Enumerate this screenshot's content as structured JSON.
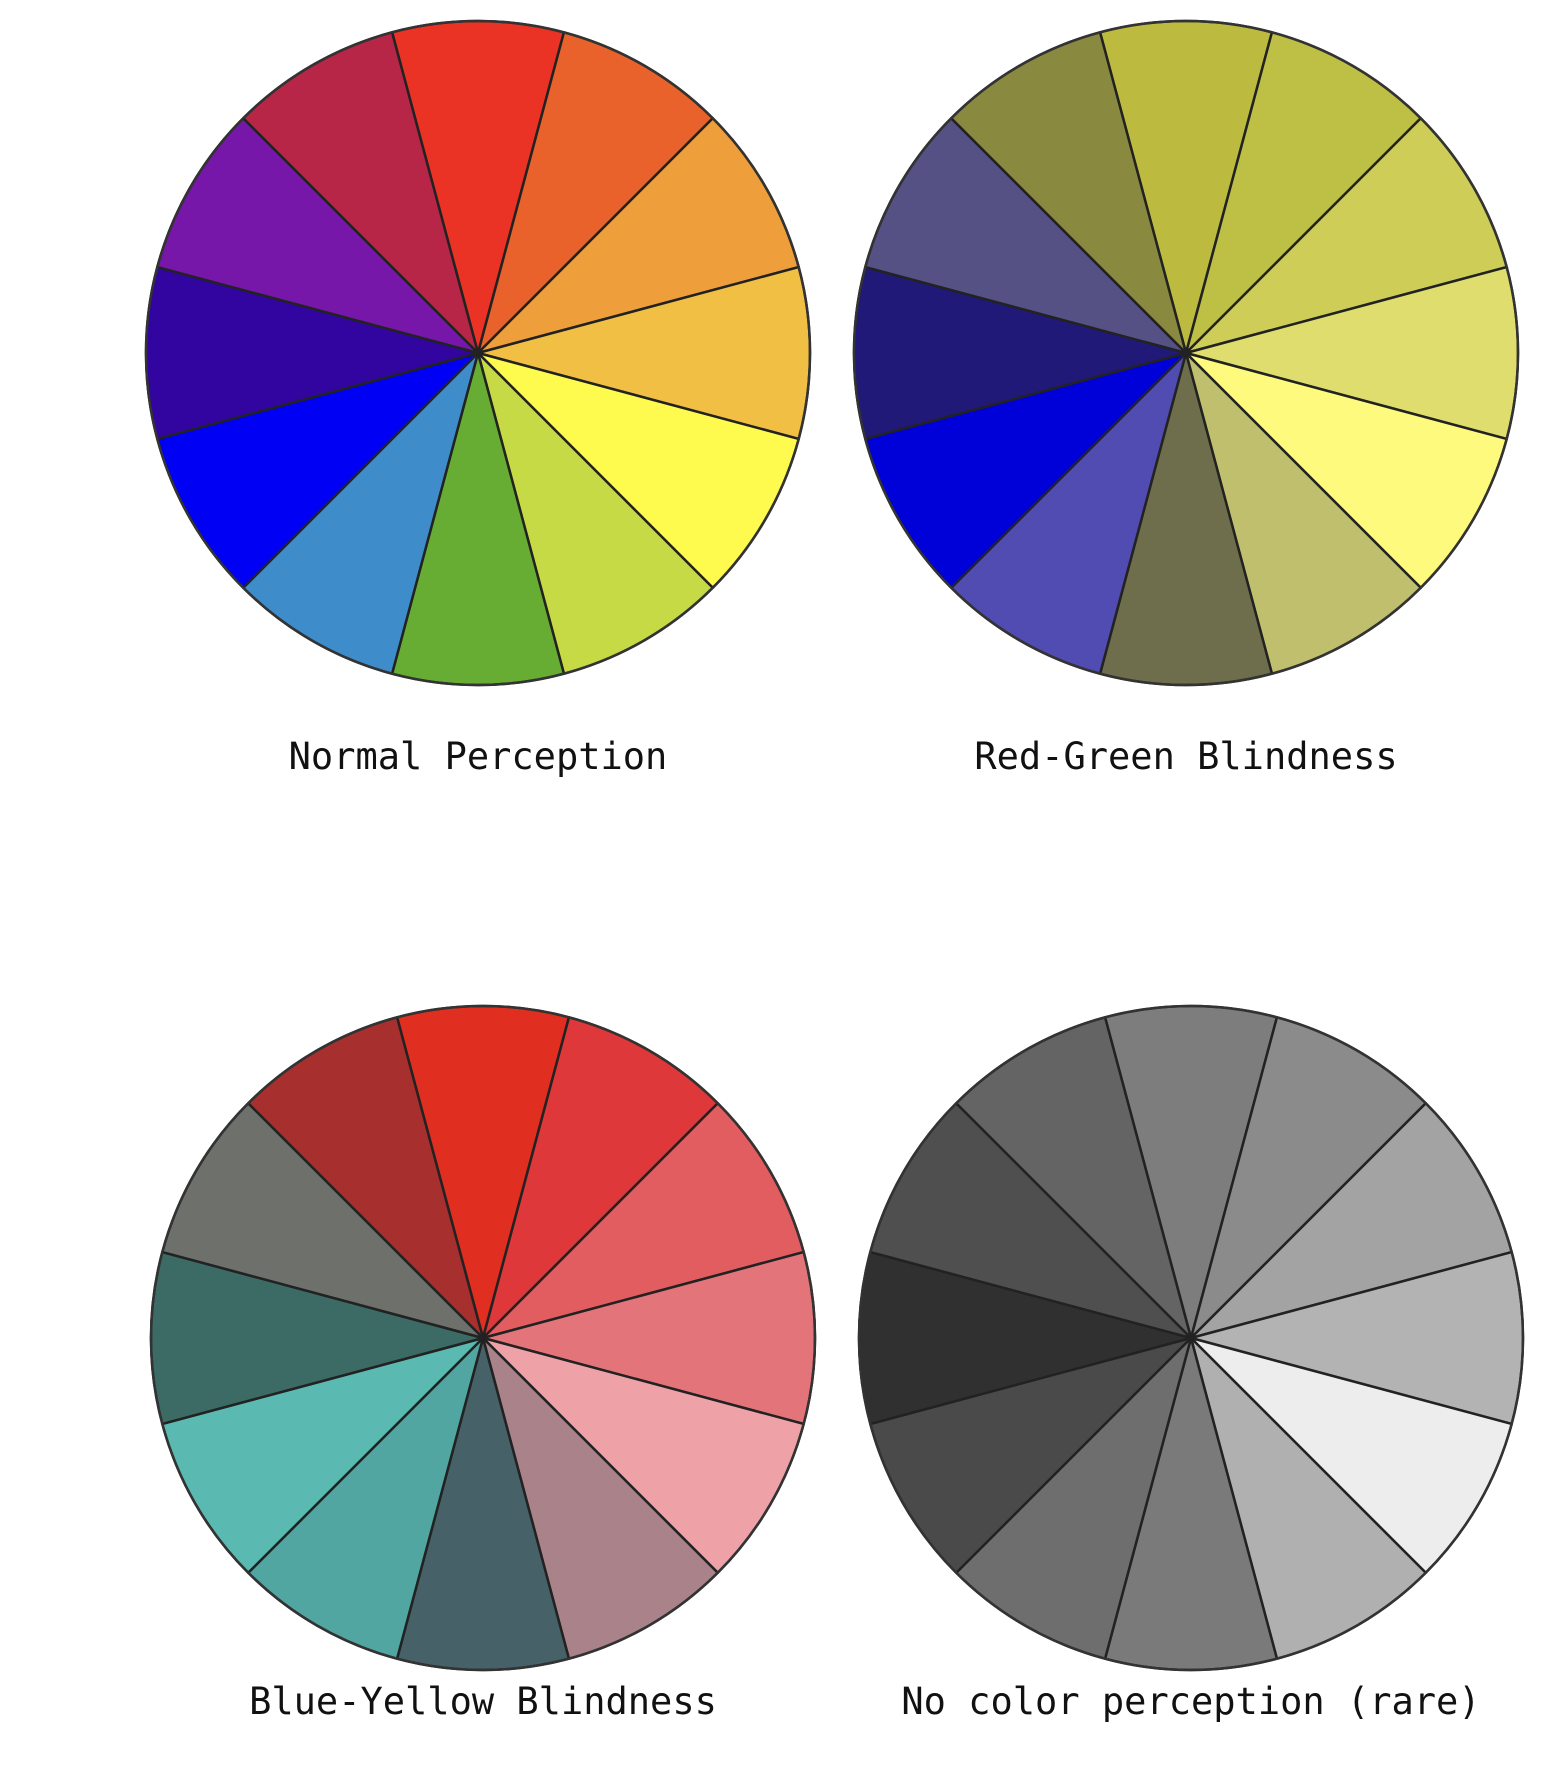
{
  "wheels": [
    {
      "caption": "Normal Perception",
      "segments": [
        "#EA3324",
        "#E9622B",
        "#EE9E3A",
        "#F1BF44",
        "#FFFA4E",
        "#C5DA45",
        "#67AD33",
        "#3E8DCA",
        "#0000F5",
        "#3305A0",
        "#7617AA",
        "#B72647"
      ]
    },
    {
      "caption": "Red-Green Blindness",
      "segments": [
        "#BCBA3F",
        "#BEBF45",
        "#CDCD57",
        "#DEDD6D",
        "#FDFA7D",
        "#C0BF6E",
        "#6E6E4C",
        "#514CB1",
        "#0000D8",
        "#211978",
        "#555185",
        "#8A8940"
      ]
    },
    {
      "caption": "Blue-Yellow Blindness",
      "segments": [
        "#E02F21",
        "#DE383B",
        "#E15D5F",
        "#E3747A",
        "#EFA1A8",
        "#A98389",
        "#466167",
        "#52A6A1",
        "#5AB9B1",
        "#3C6B66",
        "#6E706C",
        "#A72F2E"
      ]
    },
    {
      "caption": "No color perception (rare)",
      "segments": [
        "#7D7D7D",
        "#8B8B8B",
        "#A3A3A3",
        "#B3B3B3",
        "#EDEDED",
        "#B0B0B0",
        "#7A7A7A",
        "#6E6E6E",
        "#4A4A4A",
        "#303030",
        "#4F4F4F",
        "#646464"
      ]
    }
  ]
}
